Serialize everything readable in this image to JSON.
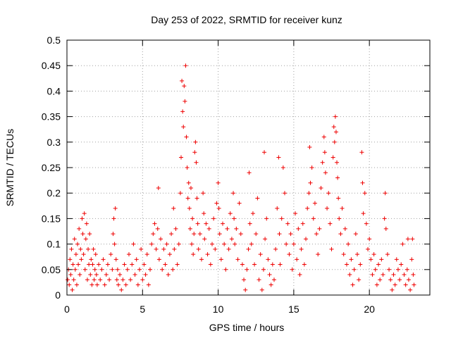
{
  "chart_data": {
    "type": "scatter",
    "title": "Day 253 of 2022, SRMTID for receiver kunz",
    "xlabel": "GPS time / hours",
    "ylabel": "SRMTID / TECUs",
    "xlim": [
      0,
      24
    ],
    "ylim": [
      0,
      0.5
    ],
    "x_ticks": [
      0,
      5,
      10,
      15,
      20
    ],
    "y_ticks": [
      0,
      0.05,
      0.1,
      0.15,
      0.2,
      0.25,
      0.3,
      0.35,
      0.4,
      0.45,
      0.5
    ],
    "x_tick_labels": [
      "0",
      "5",
      "10",
      "15",
      "20"
    ],
    "y_tick_labels": [
      "0",
      "0.05",
      "0.1",
      "0.15",
      "0.2",
      "0.25",
      "0.3",
      "0.35",
      "0.4",
      "0.45",
      "0.5"
    ],
    "grid": true,
    "marker": "+",
    "series": [
      {
        "name": "SRMTID",
        "color": "#ee0000",
        "points": [
          [
            0.05,
            0.03
          ],
          [
            0.1,
            0.05
          ],
          [
            0.15,
            0.02
          ],
          [
            0.2,
            0.07
          ],
          [
            0.25,
            0.04
          ],
          [
            0.3,
            0.09
          ],
          [
            0.35,
            0.01
          ],
          [
            0.4,
            0.06
          ],
          [
            0.45,
            0.03
          ],
          [
            0.5,
            0.11
          ],
          [
            0.55,
            0.05
          ],
          [
            0.6,
            0.08
          ],
          [
            0.65,
            0.02
          ],
          [
            0.7,
            0.1
          ],
          [
            0.75,
            0.06
          ],
          [
            0.8,
            0.13
          ],
          [
            0.85,
            0.04
          ],
          [
            0.9,
            0.09
          ],
          [
            0.95,
            0.07
          ],
          [
            1.0,
            0.15
          ],
          [
            1.05,
            0.12
          ],
          [
            1.1,
            0.08
          ],
          [
            1.15,
            0.16
          ],
          [
            1.2,
            0.05
          ],
          [
            1.25,
            0.11
          ],
          [
            1.3,
            0.14
          ],
          [
            1.35,
            0.03
          ],
          [
            1.4,
            0.09
          ],
          [
            1.45,
            0.06
          ],
          [
            1.5,
            0.12
          ],
          [
            1.55,
            0.04
          ],
          [
            1.6,
            0.07
          ],
          [
            1.65,
            0.02
          ],
          [
            1.7,
            0.06
          ],
          [
            1.75,
            0.09
          ],
          [
            1.8,
            0.03
          ],
          [
            1.85,
            0.05
          ],
          [
            1.9,
            0.08
          ],
          [
            1.95,
            0.04
          ],
          [
            2.0,
            0.02
          ],
          [
            2.1,
            0.06
          ],
          [
            2.2,
            0.03
          ],
          [
            2.3,
            0.05
          ],
          [
            2.4,
            0.07
          ],
          [
            2.5,
            0.02
          ],
          [
            2.6,
            0.04
          ],
          [
            2.7,
            0.06
          ],
          [
            2.8,
            0.03
          ],
          [
            2.9,
            0.08
          ],
          [
            3.0,
            0.05
          ],
          [
            3.05,
            0.12
          ],
          [
            3.1,
            0.15
          ],
          [
            3.15,
            0.1
          ],
          [
            3.2,
            0.17
          ],
          [
            3.25,
            0.07
          ],
          [
            3.3,
            0.03
          ],
          [
            3.35,
            0.05
          ],
          [
            3.4,
            0.02
          ],
          [
            3.5,
            0.04
          ],
          [
            3.6,
            0.01
          ],
          [
            3.7,
            0.03
          ],
          [
            3.8,
            0.06
          ],
          [
            3.9,
            0.02
          ],
          [
            4.0,
            0.05
          ],
          [
            4.1,
            0.08
          ],
          [
            4.2,
            0.03
          ],
          [
            4.3,
            0.06
          ],
          [
            4.4,
            0.1
          ],
          [
            4.5,
            0.04
          ],
          [
            4.6,
            0.07
          ],
          [
            4.7,
            0.02
          ],
          [
            4.8,
            0.05
          ],
          [
            4.9,
            0.09
          ],
          [
            5.0,
            0.03
          ],
          [
            5.1,
            0.06
          ],
          [
            5.2,
            0.04
          ],
          [
            5.3,
            0.08
          ],
          [
            5.4,
            0.02
          ],
          [
            5.5,
            0.05
          ],
          [
            5.6,
            0.1
          ],
          [
            5.7,
            0.12
          ],
          [
            5.8,
            0.14
          ],
          [
            5.9,
            0.09
          ],
          [
            6.0,
            0.13
          ],
          [
            6.05,
            0.21
          ],
          [
            6.1,
            0.07
          ],
          [
            6.2,
            0.11
          ],
          [
            6.3,
            0.05
          ],
          [
            6.4,
            0.09
          ],
          [
            6.5,
            0.06
          ],
          [
            6.6,
            0.1
          ],
          [
            6.7,
            0.04
          ],
          [
            6.8,
            0.08
          ],
          [
            6.9,
            0.12
          ],
          [
            7.0,
            0.05
          ],
          [
            7.05,
            0.17
          ],
          [
            7.1,
            0.09
          ],
          [
            7.2,
            0.13
          ],
          [
            7.3,
            0.06
          ],
          [
            7.4,
            0.1
          ],
          [
            7.5,
            0.2
          ],
          [
            7.55,
            0.27
          ],
          [
            7.6,
            0.42
          ],
          [
            7.65,
            0.36
          ],
          [
            7.7,
            0.33
          ],
          [
            7.75,
            0.41
          ],
          [
            7.8,
            0.38
          ],
          [
            7.85,
            0.45
          ],
          [
            7.9,
            0.31
          ],
          [
            7.95,
            0.25
          ],
          [
            8.0,
            0.19
          ],
          [
            8.05,
            0.22
          ],
          [
            8.1,
            0.17
          ],
          [
            8.15,
            0.13
          ],
          [
            8.2,
            0.21
          ],
          [
            8.25,
            0.1
          ],
          [
            8.3,
            0.15
          ],
          [
            8.35,
            0.08
          ],
          [
            8.4,
            0.12
          ],
          [
            8.45,
            0.28
          ],
          [
            8.5,
            0.3
          ],
          [
            8.55,
            0.26
          ],
          [
            8.6,
            0.19
          ],
          [
            8.65,
            0.14
          ],
          [
            8.7,
            0.09
          ],
          [
            8.8,
            0.12
          ],
          [
            8.9,
            0.07
          ],
          [
            9.0,
            0.2
          ],
          [
            9.05,
            0.16
          ],
          [
            9.1,
            0.11
          ],
          [
            9.2,
            0.14
          ],
          [
            9.3,
            0.08
          ],
          [
            9.4,
            0.13
          ],
          [
            9.5,
            0.06
          ],
          [
            9.6,
            0.1
          ],
          [
            9.7,
            0.15
          ],
          [
            9.8,
            0.09
          ],
          [
            9.9,
            0.18
          ],
          [
            10.0,
            0.22
          ],
          [
            10.05,
            0.17
          ],
          [
            10.1,
            0.12
          ],
          [
            10.2,
            0.07
          ],
          [
            10.3,
            0.14
          ],
          [
            10.4,
            0.1
          ],
          [
            10.5,
            0.05
          ],
          [
            10.6,
            0.13
          ],
          [
            10.7,
            0.09
          ],
          [
            10.8,
            0.16
          ],
          [
            10.9,
            0.11
          ],
          [
            11.0,
            0.2
          ],
          [
            11.05,
            0.15
          ],
          [
            11.1,
            0.1
          ],
          [
            11.2,
            0.13
          ],
          [
            11.3,
            0.07
          ],
          [
            11.4,
            0.18
          ],
          [
            11.5,
            0.12
          ],
          [
            11.6,
            0.06
          ],
          [
            11.7,
            0.03
          ],
          [
            11.8,
            0.01
          ],
          [
            11.9,
            0.05
          ],
          [
            12.0,
            0.09
          ],
          [
            12.05,
            0.24
          ],
          [
            12.1,
            0.14
          ],
          [
            12.2,
            0.1
          ],
          [
            12.3,
            0.16
          ],
          [
            12.4,
            0.06
          ],
          [
            12.5,
            0.12
          ],
          [
            12.6,
            0.19
          ],
          [
            12.7,
            0.03
          ],
          [
            12.8,
            0.08
          ],
          [
            12.9,
            0.01
          ],
          [
            13.0,
            0.05
          ],
          [
            13.05,
            0.28
          ],
          [
            13.1,
            0.11
          ],
          [
            13.2,
            0.15
          ],
          [
            13.3,
            0.07
          ],
          [
            13.4,
            0.04
          ],
          [
            13.5,
            0.02
          ],
          [
            13.6,
            0.06
          ],
          [
            13.7,
            0.03
          ],
          [
            13.8,
            0.09
          ],
          [
            13.9,
            0.17
          ],
          [
            14.0,
            0.27
          ],
          [
            14.05,
            0.12
          ],
          [
            14.1,
            0.06
          ],
          [
            14.2,
            0.15
          ],
          [
            14.3,
            0.25
          ],
          [
            14.4,
            0.2
          ],
          [
            14.5,
            0.1
          ],
          [
            14.6,
            0.14
          ],
          [
            14.7,
            0.08
          ],
          [
            14.8,
            0.12
          ],
          [
            14.9,
            0.05
          ],
          [
            15.0,
            0.1
          ],
          [
            15.1,
            0.16
          ],
          [
            15.2,
            0.07
          ],
          [
            15.3,
            0.13
          ],
          [
            15.4,
            0.04
          ],
          [
            15.5,
            0.09
          ],
          [
            15.6,
            0.14
          ],
          [
            15.7,
            0.06
          ],
          [
            15.8,
            0.11
          ],
          [
            15.9,
            0.17
          ],
          [
            16.0,
            0.2
          ],
          [
            16.05,
            0.29
          ],
          [
            16.1,
            0.22
          ],
          [
            16.2,
            0.25
          ],
          [
            16.3,
            0.15
          ],
          [
            16.4,
            0.18
          ],
          [
            16.5,
            0.12
          ],
          [
            16.6,
            0.08
          ],
          [
            16.7,
            0.13
          ],
          [
            16.8,
            0.21
          ],
          [
            16.9,
            0.26
          ],
          [
            17.0,
            0.31
          ],
          [
            17.05,
            0.28
          ],
          [
            17.1,
            0.24
          ],
          [
            17.2,
            0.17
          ],
          [
            17.3,
            0.2
          ],
          [
            17.4,
            0.14
          ],
          [
            17.5,
            0.09
          ],
          [
            17.6,
            0.27
          ],
          [
            17.65,
            0.33
          ],
          [
            17.7,
            0.3
          ],
          [
            17.75,
            0.35
          ],
          [
            17.8,
            0.32
          ],
          [
            17.85,
            0.26
          ],
          [
            17.9,
            0.23
          ],
          [
            17.95,
            0.19
          ],
          [
            18.0,
            0.15
          ],
          [
            18.1,
            0.12
          ],
          [
            18.2,
            0.17
          ],
          [
            18.3,
            0.08
          ],
          [
            18.4,
            0.13
          ],
          [
            18.5,
            0.06
          ],
          [
            18.6,
            0.1
          ],
          [
            18.7,
            0.04
          ],
          [
            18.8,
            0.07
          ],
          [
            18.9,
            0.02
          ],
          [
            19.0,
            0.05
          ],
          [
            19.1,
            0.12
          ],
          [
            19.2,
            0.08
          ],
          [
            19.3,
            0.03
          ],
          [
            19.4,
            0.06
          ],
          [
            19.5,
            0.28
          ],
          [
            19.55,
            0.22
          ],
          [
            19.6,
            0.16
          ],
          [
            19.7,
            0.2
          ],
          [
            19.8,
            0.14
          ],
          [
            19.9,
            0.09
          ],
          [
            20.0,
            0.11
          ],
          [
            20.1,
            0.07
          ],
          [
            20.2,
            0.04
          ],
          [
            20.3,
            0.08
          ],
          [
            20.4,
            0.05
          ],
          [
            20.5,
            0.02
          ],
          [
            20.6,
            0.06
          ],
          [
            20.7,
            0.03
          ],
          [
            20.8,
            0.07
          ],
          [
            20.9,
            0.04
          ],
          [
            21.0,
            0.15
          ],
          [
            21.05,
            0.2
          ],
          [
            21.1,
            0.13
          ],
          [
            21.2,
            0.08
          ],
          [
            21.3,
            0.05
          ],
          [
            21.4,
            0.03
          ],
          [
            21.5,
            0.01
          ],
          [
            21.6,
            0.04
          ],
          [
            21.7,
            0.02
          ],
          [
            21.8,
            0.07
          ],
          [
            21.9,
            0.05
          ],
          [
            22.0,
            0.03
          ],
          [
            22.1,
            0.06
          ],
          [
            22.2,
            0.1
          ],
          [
            22.3,
            0.04
          ],
          [
            22.4,
            0.02
          ],
          [
            22.5,
            0.05
          ],
          [
            22.55,
            0.11
          ],
          [
            22.6,
            0.03
          ],
          [
            22.7,
            0.01
          ],
          [
            22.8,
            0.07
          ],
          [
            22.85,
            0.11
          ],
          [
            22.9,
            0.04
          ],
          [
            22.95,
            0.02
          ]
        ]
      }
    ]
  }
}
